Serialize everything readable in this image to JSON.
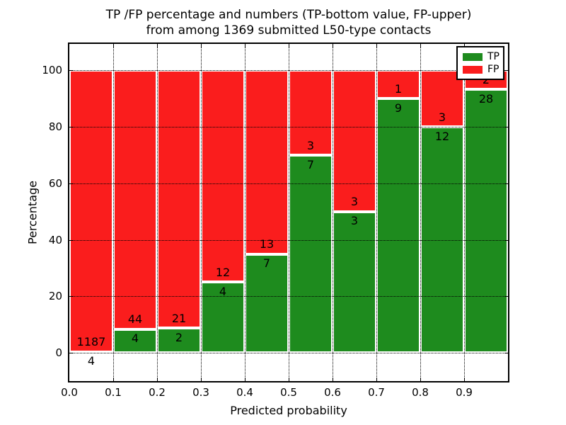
{
  "title": {
    "line1": "TP /FP percentage and numbers (TP-bottom value, FP-upper)",
    "line2": "from among 1369 submitted L50-type contacts"
  },
  "axes": {
    "x_label": "Predicted probability",
    "y_label": "Percentage",
    "x_tick_labels": [
      "0.0",
      "0.1",
      "0.2",
      "0.3",
      "0.4",
      "0.5",
      "0.6",
      "0.7",
      "0.8",
      "0.9"
    ],
    "y_tick_labels": [
      "0",
      "20",
      "40",
      "60",
      "80",
      "100"
    ],
    "y_tick_values": [
      0,
      20,
      40,
      60,
      80,
      100
    ]
  },
  "legend": {
    "position": "upper-right",
    "items": [
      {
        "label": "TP",
        "color": "#1e8b1e"
      },
      {
        "label": "FP",
        "color": "#fa1d1d"
      }
    ]
  },
  "colors": {
    "tp": "#1e8b1e",
    "fp": "#fa1d1d",
    "grid": "#000000",
    "frame": "#000000",
    "background": "#ffffff",
    "bar_edge": "#ffffff"
  },
  "chart_data": {
    "type": "bar",
    "subtype": "stacked-normalized-percent",
    "title": "TP /FP percentage and numbers (TP-bottom value, FP-upper) from among 1369 submitted L50-type contacts",
    "xlabel": "Predicted probability",
    "ylabel": "Percentage",
    "xlim": [
      0.0,
      1.0
    ],
    "ylim": [
      -10,
      109.4
    ],
    "bin_width": 0.1,
    "grid": true,
    "legend_position": "upper right",
    "categories": [
      "0.0-0.1",
      "0.1-0.2",
      "0.2-0.3",
      "0.3-0.4",
      "0.4-0.5",
      "0.5-0.6",
      "0.6-0.7",
      "0.7-0.8",
      "0.8-0.9",
      "0.9-1.0"
    ],
    "series": [
      {
        "name": "TP",
        "color": "#1e8b1e",
        "counts": [
          4,
          4,
          2,
          4,
          7,
          7,
          3,
          9,
          12,
          28
        ]
      },
      {
        "name": "FP",
        "color": "#fa1d1d",
        "counts": [
          1187,
          44,
          21,
          12,
          13,
          3,
          3,
          1,
          3,
          2
        ]
      }
    ],
    "tp_percent_approx": [
      0.34,
      8.33,
      8.7,
      25.0,
      35.0,
      70.0,
      50.0,
      90.0,
      80.0,
      93.33
    ],
    "total_contacts": 1369
  }
}
